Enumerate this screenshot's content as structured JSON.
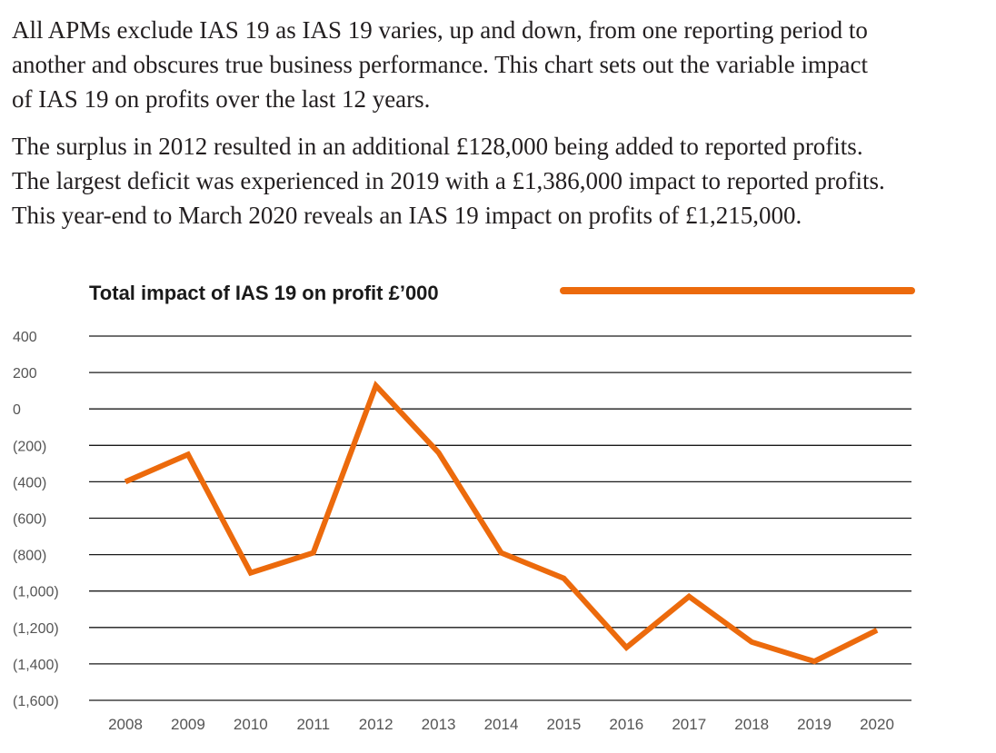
{
  "text": {
    "paragraph1": "All APMs exclude IAS 19 as IAS 19 varies, up and down, from one reporting period to\nanother and obscures true business performance. This chart sets out the variable impact\nof IAS 19 on profits over the last 12 years.",
    "paragraph2": "The surplus in 2012 resulted in an additional £128,000 being added to reported profits.\nThe largest deficit was experienced in 2019 with a £1,386,000 impact to reported profits.\nThis year-end to March 2020 reveals an IAS 19 impact on profits of £1,215,000."
  },
  "chart_data": {
    "type": "line",
    "title": "",
    "xlabel": "",
    "ylabel": "",
    "legend": {
      "label": "Total impact of IAS 19 on profit £’000",
      "placement": "top"
    },
    "x": [
      "2008",
      "2009",
      "2010",
      "2011",
      "2012",
      "2013",
      "2014",
      "2015",
      "2016",
      "2017",
      "2018",
      "2019",
      "2020"
    ],
    "series": [
      {
        "name": "Total impact of IAS 19 on profit £’000",
        "values": [
          -400,
          -250,
          -900,
          -790,
          128,
          -240,
          -790,
          -930,
          -1310,
          -1030,
          -1280,
          -1386,
          -1215
        ],
        "color": "#ec6a0c"
      }
    ],
    "ylim": [
      -1600,
      400
    ],
    "yticks": [
      400,
      200,
      0,
      -200,
      -400,
      -600,
      -800,
      -1000,
      -1200,
      -1400,
      -1600
    ],
    "ytick_labels": [
      "400",
      "200",
      "0",
      "(200)",
      "(400)",
      "(600)",
      "(800)",
      "(1,000)",
      "(1,200)",
      "(1,400)",
      "(1,600)"
    ],
    "grid": true
  }
}
